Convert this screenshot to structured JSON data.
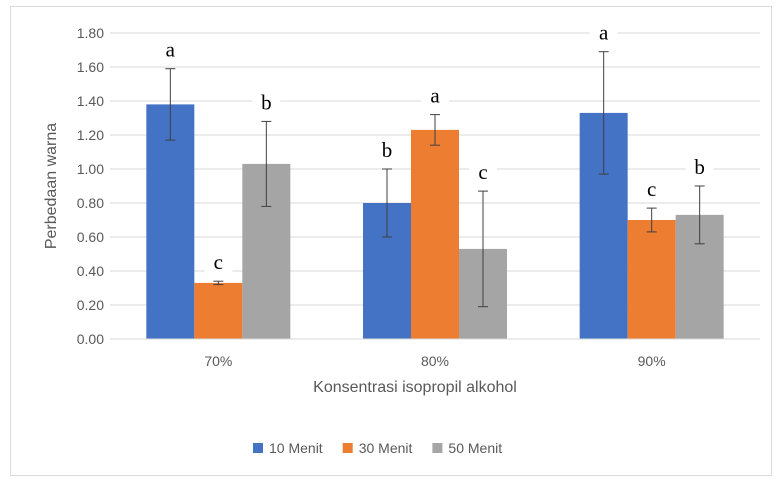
{
  "chart_data": {
    "type": "bar",
    "categories": [
      "70%",
      "80%",
      "90%"
    ],
    "xlabel": "Konsentrasi isopropil alkohol",
    "ylabel": "Perbedaan warna",
    "ylim": [
      0,
      1.8
    ],
    "yticks": [
      "0.00",
      "0.20",
      "0.40",
      "0.60",
      "0.80",
      "1.00",
      "1.20",
      "1.40",
      "1.60",
      "1.80"
    ],
    "grid": true,
    "legend_position": "bottom",
    "series": [
      {
        "name": "10 Menit",
        "color": "#4472c4",
        "values": [
          1.38,
          0.8,
          1.33
        ],
        "errors": [
          0.21,
          0.2,
          0.36
        ],
        "letters": [
          "a",
          "b",
          "a"
        ]
      },
      {
        "name": "30 Menit",
        "color": "#ed7d31",
        "values": [
          0.33,
          1.23,
          0.7
        ],
        "errors": [
          0.01,
          0.09,
          0.07
        ],
        "letters": [
          "c",
          "a",
          "c"
        ]
      },
      {
        "name": "50 Menit",
        "color": "#a5a5a5",
        "values": [
          1.03,
          0.53,
          0.73
        ],
        "errors": [
          0.25,
          0.34,
          0.17
        ],
        "letters": [
          "b",
          "c",
          "b"
        ]
      }
    ]
  }
}
